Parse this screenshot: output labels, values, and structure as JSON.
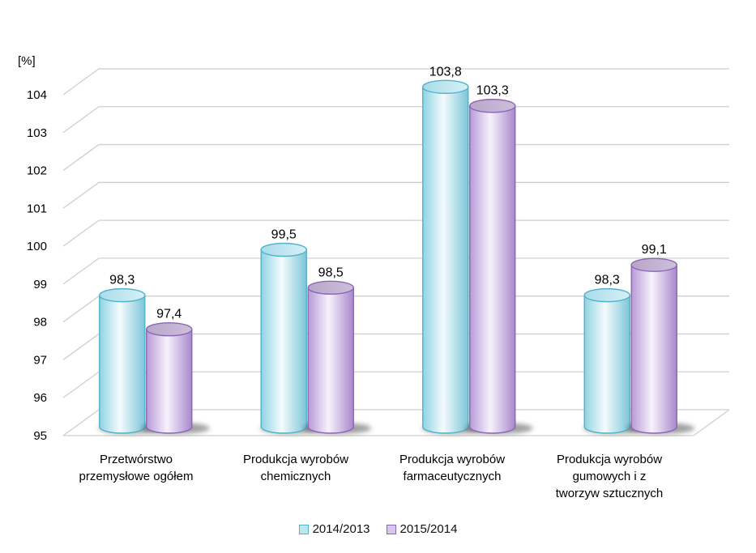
{
  "chart_data": {
    "type": "bar",
    "title": "",
    "unit_label": "[%]",
    "ylabel": "[%]",
    "xlabel": "",
    "ylim": [
      95,
      104
    ],
    "yticks": [
      95,
      96,
      97,
      98,
      99,
      100,
      101,
      102,
      103,
      104
    ],
    "grid": true,
    "legend_position": "bottom",
    "categories": [
      [
        "Przetwórstwo",
        "przemysłowe ogółem"
      ],
      [
        "Produkcja wyrobów",
        "chemicznych"
      ],
      [
        "Produkcja wyrobów",
        "farmaceutycznych"
      ],
      [
        "Produkcja wyrobów",
        "gumowych i z",
        "tworzyw sztucznych"
      ]
    ],
    "series": [
      {
        "name": "2014/2013",
        "values": [
          98.3,
          99.5,
          103.8,
          98.3
        ],
        "labels": [
          "98,3",
          "99,5",
          "103,8",
          "98,3"
        ],
        "color": "#bfe6ef",
        "edge": "#4fb3c9"
      },
      {
        "name": "2015/2014",
        "values": [
          97.4,
          98.5,
          103.3,
          99.1
        ],
        "labels": [
          "97,4",
          "98,5",
          "103,3",
          "99,1"
        ],
        "color": "#d9c6ec",
        "edge": "#8a66b3"
      }
    ]
  }
}
